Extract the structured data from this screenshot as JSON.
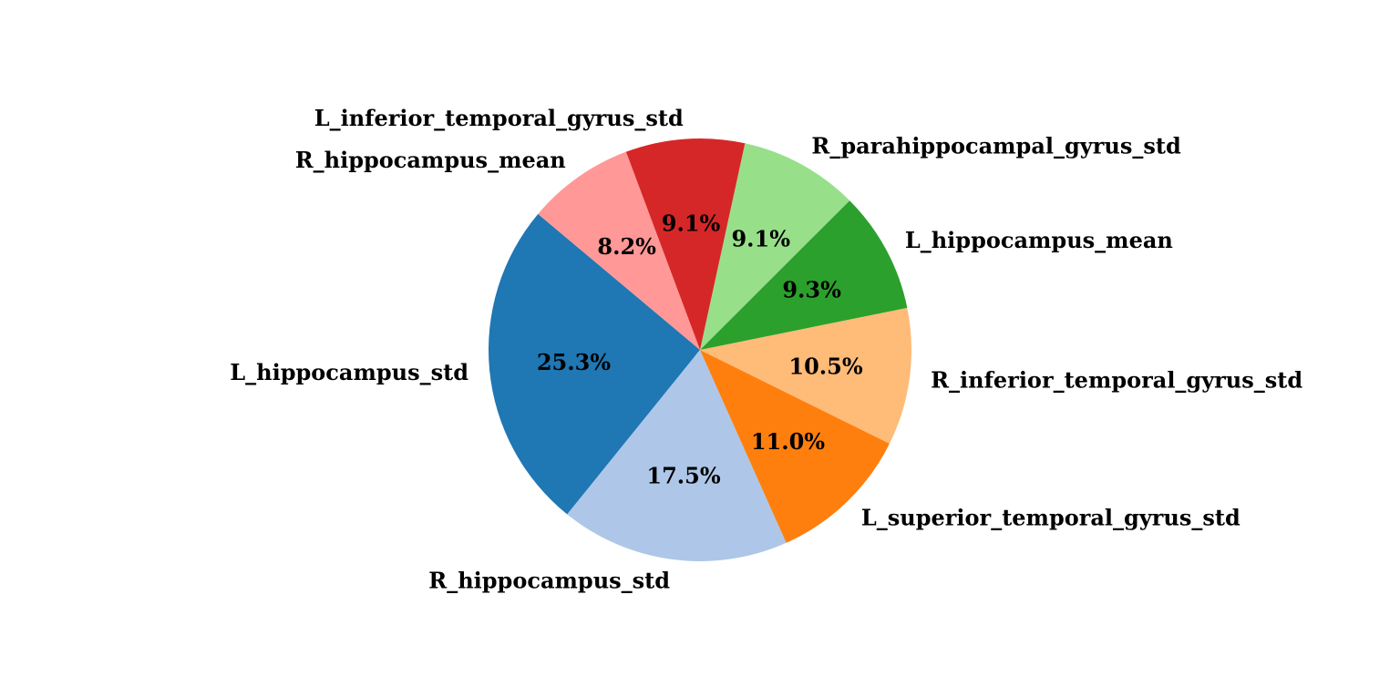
{
  "chart_data": {
    "type": "pie",
    "title": "",
    "slices": [
      {
        "label": "L_hippocampus_std",
        "value": 25.3,
        "pct_label": "25.3%",
        "color": "#1f77b4"
      },
      {
        "label": "R_hippocampus_std",
        "value": 17.5,
        "pct_label": "17.5%",
        "color": "#aec7e8"
      },
      {
        "label": "L_superior_temporal_gyrus_std",
        "value": 11.0,
        "pct_label": "11.0%",
        "color": "#ff7f0e"
      },
      {
        "label": "R_inferior_temporal_gyrus_std",
        "value": 10.5,
        "pct_label": "10.5%",
        "color": "#ffbb78"
      },
      {
        "label": "L_hippocampus_mean",
        "value": 9.3,
        "pct_label": "9.3%",
        "color": "#2ca02c"
      },
      {
        "label": "R_parahippocampal_gyrus_std",
        "value": 9.1,
        "pct_label": "9.1%",
        "color": "#98df8a"
      },
      {
        "label": "L_inferior_temporal_gyrus_std",
        "value": 9.1,
        "pct_label": "9.1%",
        "color": "#d62728"
      },
      {
        "label": "R_hippocampus_mean",
        "value": 8.2,
        "pct_label": "8.2%",
        "color": "#ff9896"
      }
    ],
    "start_angle_deg": 140,
    "direction": "counterclockwise",
    "legend": "none"
  }
}
